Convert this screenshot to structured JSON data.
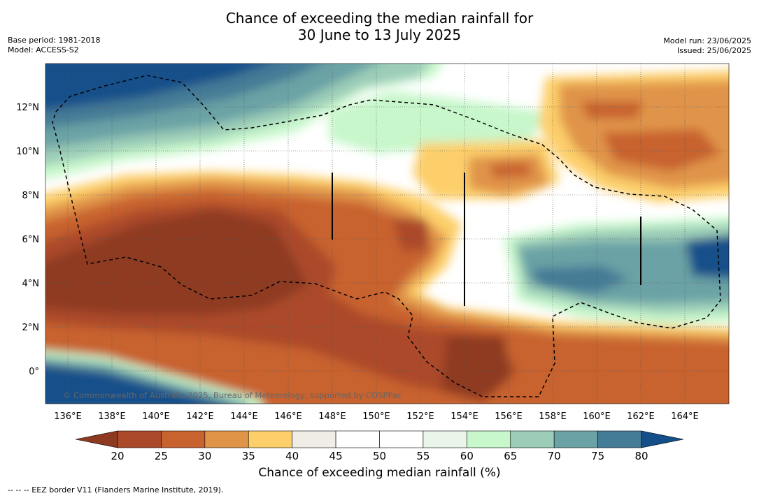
{
  "title_line1": "Chance of exceeding the median rainfall for",
  "title_line2": "30 June to 13 July 2025",
  "meta_left": [
    "Base period: 1981-2018",
    "Model: ACCESS-S2"
  ],
  "meta_right": [
    "Model run: 23/06/2025",
    "Issued: 25/06/2025"
  ],
  "copyright": "© Commonwealth of Australia 2025, Bureau of Meteorology, supported by COSPPac",
  "footnote": "--  --  -- EEZ border V11 (Flanders Marine Institute, 2019).",
  "lon_ticks": [
    "136°E",
    "138°E",
    "140°E",
    "142°E",
    "144°E",
    "146°E",
    "148°E",
    "150°E",
    "152°E",
    "154°E",
    "156°E",
    "158°E",
    "160°E",
    "162°E",
    "164°E"
  ],
  "lat_ticks": [
    "12°N",
    "10°N",
    "8°N",
    "6°N",
    "4°N",
    "2°N",
    "0°"
  ],
  "colorbar": {
    "label": "Chance of exceeding median rainfall (%)",
    "ticks": [
      "20",
      "25",
      "30",
      "35",
      "40",
      "45",
      "50",
      "55",
      "60",
      "65",
      "70",
      "75",
      "80"
    ],
    "colors": [
      "#ab4a2a",
      "#c8622f",
      "#e09448",
      "#fdcf6a",
      "#f0ece6",
      "#ffffff",
      "#ffffff",
      "#eaf5ea",
      "#c7f7cb",
      "#9ccdb8",
      "#6ba2a5",
      "#447b96"
    ],
    "low_color": "#8e3a20",
    "high_color": "#154f8a"
  }
}
